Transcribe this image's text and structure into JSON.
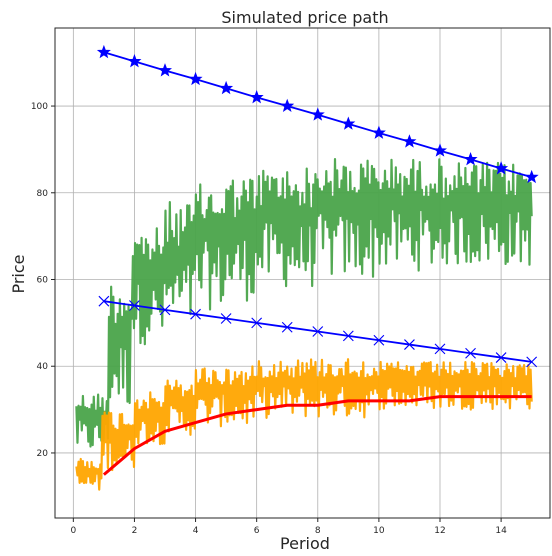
{
  "chart_data": {
    "type": "line",
    "title": "Simulated price path",
    "xlabel": "Period",
    "ylabel": "Price",
    "xlim": [
      -0.6,
      15.6
    ],
    "ylim": [
      5,
      118
    ],
    "xticks": [
      0,
      2,
      4,
      6,
      8,
      10,
      12,
      14
    ],
    "yticks": [
      20,
      40,
      60,
      80,
      100
    ],
    "grid": true,
    "colors": {
      "green": "#4aa44a",
      "orange": "#ffa500",
      "red": "#ff0000",
      "blue": "#0000ff",
      "grid": "#b0b0b0",
      "frame": "#262626"
    },
    "series": [
      {
        "color": "green",
        "style": "noisy-line",
        "x_range": [
          0.1,
          15.0
        ],
        "segments": [
          {
            "x": [
              0.1,
              1.15
            ],
            "low": 20,
            "high": 34
          },
          {
            "x": [
              1.15,
              1.9
            ],
            "low": 30,
            "high": 60
          },
          {
            "x": [
              1.9,
              3.0
            ],
            "low": 45,
            "high": 72
          },
          {
            "x": [
              3.0,
              4.0
            ],
            "low": 48,
            "high": 78
          },
          {
            "x": [
              4.0,
              5.0
            ],
            "low": 53,
            "high": 82
          },
          {
            "x": [
              5.0,
              6.0
            ],
            "low": 55,
            "high": 84
          },
          {
            "x": [
              6.0,
              8.0
            ],
            "low": 58,
            "high": 86
          },
          {
            "x": [
              8.0,
              10.0
            ],
            "low": 60,
            "high": 88
          },
          {
            "x": [
              10.0,
              12.0
            ],
            "low": 62,
            "high": 88
          },
          {
            "x": [
              12.0,
              15.0
            ],
            "low": 63,
            "high": 87
          }
        ]
      },
      {
        "color": "orange",
        "style": "noisy-line",
        "x_range": [
          0.1,
          15.0
        ],
        "segments": [
          {
            "x": [
              0.1,
              0.95
            ],
            "low": 11,
            "high": 19
          },
          {
            "x": [
              0.95,
              2.0
            ],
            "low": 16,
            "high": 30
          },
          {
            "x": [
              2.0,
              3.0
            ],
            "low": 22,
            "high": 34
          },
          {
            "x": [
              3.0,
              4.0
            ],
            "low": 24,
            "high": 37
          },
          {
            "x": [
              4.0,
              6.0
            ],
            "low": 26,
            "high": 40
          },
          {
            "x": [
              6.0,
              10.0
            ],
            "low": 28,
            "high": 42
          },
          {
            "x": [
              10.0,
              15.0
            ],
            "low": 30,
            "high": 41
          }
        ]
      },
      {
        "color": "red",
        "style": "line",
        "x": [
          1,
          2,
          3,
          4,
          5,
          6,
          7,
          8,
          9,
          10,
          11,
          12,
          13,
          14,
          15
        ],
        "y": [
          15,
          21,
          25,
          27,
          29,
          30,
          31,
          31,
          32,
          32,
          32,
          33,
          33,
          33,
          33
        ]
      },
      {
        "color": "blue",
        "style": "line-star",
        "x": [
          1,
          2,
          3,
          4,
          5,
          6,
          7,
          8,
          9,
          10,
          11,
          12,
          13,
          14,
          15
        ],
        "y": [
          112.4,
          110.3,
          108.2,
          106.2,
          104.1,
          102.0,
          100.0,
          98.0,
          95.9,
          93.8,
          91.8,
          89.7,
          87.7,
          85.6,
          83.6
        ]
      },
      {
        "color": "blue",
        "style": "line-x",
        "x": [
          1,
          2,
          3,
          4,
          5,
          6,
          7,
          8,
          9,
          10,
          11,
          12,
          13,
          14,
          15
        ],
        "y": [
          55,
          54,
          53,
          52,
          51,
          50,
          49,
          48,
          47,
          46,
          45,
          44,
          43,
          42,
          41
        ]
      }
    ]
  }
}
